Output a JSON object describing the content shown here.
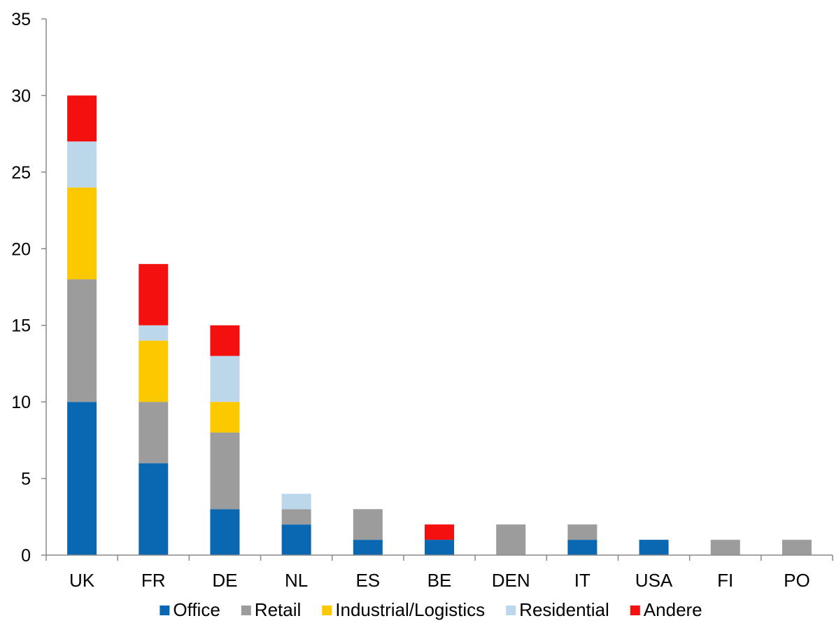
{
  "chart_data": {
    "type": "bar",
    "stacked": true,
    "title": "",
    "xlabel": "",
    "ylabel": "",
    "ylim": [
      0,
      35
    ],
    "yticks": [
      0,
      5,
      10,
      15,
      20,
      25,
      30,
      35
    ],
    "grid": false,
    "legend_position": "bottom",
    "categories": [
      "UK",
      "FR",
      "DE",
      "NL",
      "ES",
      "BE",
      "DEN",
      "IT",
      "USA",
      "FI",
      "PO"
    ],
    "series": [
      {
        "name": "Office",
        "color": "#0a68b3",
        "values": [
          10,
          6,
          3,
          2,
          1,
          1,
          0,
          1,
          1,
          0,
          0
        ]
      },
      {
        "name": "Retail",
        "color": "#9c9c9c",
        "values": [
          8,
          4,
          5,
          1,
          2,
          0,
          2,
          1,
          0,
          1,
          1
        ]
      },
      {
        "name": "Industrial/Logistics",
        "color": "#fcc800",
        "values": [
          6,
          4,
          2,
          0,
          0,
          0,
          0,
          0,
          0,
          0,
          0
        ]
      },
      {
        "name": "Residential",
        "color": "#bcd6ea",
        "values": [
          3,
          1,
          3,
          1,
          0,
          0,
          0,
          0,
          0,
          0,
          0
        ]
      },
      {
        "name": "Andere",
        "color": "#f51010",
        "values": [
          3,
          4,
          2,
          0,
          0,
          1,
          0,
          0,
          0,
          0,
          0
        ]
      }
    ]
  }
}
